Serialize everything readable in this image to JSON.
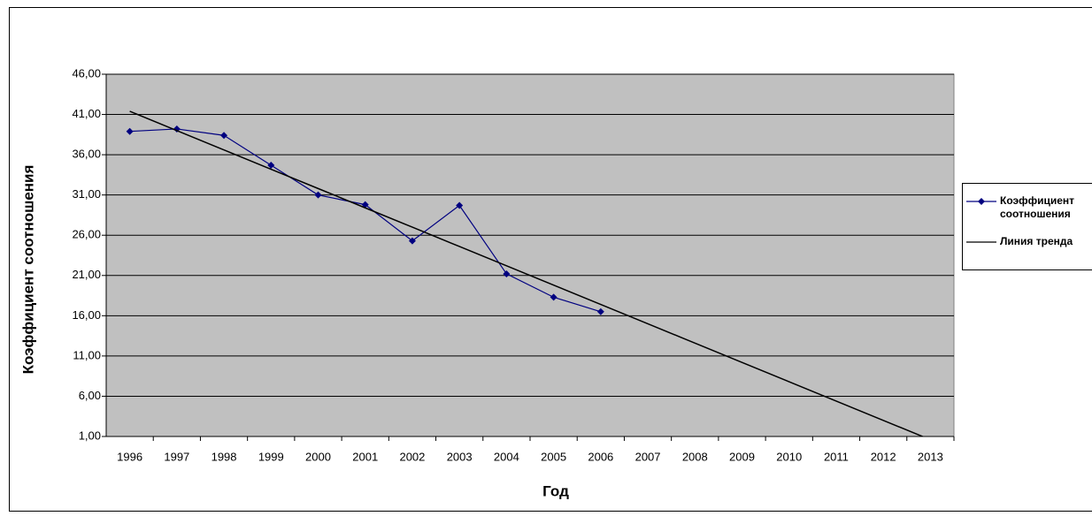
{
  "chart_data": {
    "type": "line",
    "x_label": "Год",
    "y_label": "Коэффициент соотношения",
    "categories": [
      "1996",
      "1997",
      "1998",
      "1999",
      "2000",
      "2001",
      "2002",
      "2003",
      "2004",
      "2005",
      "2006",
      "2007",
      "2008",
      "2009",
      "2010",
      "2011",
      "2012",
      "2013"
    ],
    "series": [
      {
        "name": "Коэффициент соотношения",
        "color": "#000080",
        "marker": "diamond",
        "values": [
          38.9,
          39.2,
          38.4,
          34.7,
          31.0,
          29.8,
          25.3,
          29.7,
          21.2,
          18.3,
          16.5,
          null,
          null,
          null,
          null,
          null,
          null,
          null
        ]
      },
      {
        "name": "Линия тренда",
        "color": "#000000",
        "marker": "none",
        "values": [
          41.4,
          39.0,
          36.6,
          34.2,
          31.8,
          29.4,
          27.0,
          24.6,
          22.2,
          19.8,
          17.4,
          15.0,
          12.6,
          10.2,
          7.8,
          5.4,
          3.0,
          0.6
        ]
      }
    ],
    "ylim": [
      1,
      46
    ],
    "yticks": [
      {
        "value": 1,
        "label": "1,00"
      },
      {
        "value": 6,
        "label": "6,00"
      },
      {
        "value": 11,
        "label": "11,00"
      },
      {
        "value": 16,
        "label": "16,00"
      },
      {
        "value": 21,
        "label": "21,00"
      },
      {
        "value": 26,
        "label": "26,00"
      },
      {
        "value": 31,
        "label": "31,00"
      },
      {
        "value": 36,
        "label": "36,00"
      },
      {
        "value": 41,
        "label": "41,00"
      },
      {
        "value": 46,
        "label": "46,00"
      }
    ],
    "grid": true,
    "plot_background": "#c0c0c0",
    "legend": "right"
  }
}
